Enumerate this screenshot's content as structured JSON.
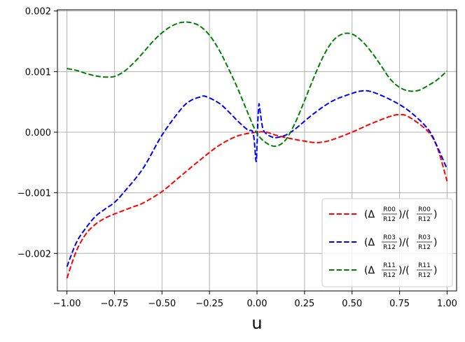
{
  "chart_data": {
    "type": "line",
    "xlabel": "u",
    "ylabel": "",
    "title": "",
    "xlim": [
      -1.05,
      1.05
    ],
    "ylim": [
      -0.00262,
      0.00202
    ],
    "grid": true,
    "legend_position": "lower-right",
    "x_ticks": [
      -1.0,
      -0.75,
      -0.5,
      -0.25,
      0.0,
      0.25,
      0.5,
      0.75,
      1.0
    ],
    "x_tick_labels": [
      "−1.00",
      "−0.75",
      "−0.50",
      "−0.25",
      "0.00",
      "0.25",
      "0.50",
      "0.75",
      "1.00"
    ],
    "y_ticks": [
      -0.002,
      -0.001,
      0.0,
      0.001,
      0.002
    ],
    "y_tick_labels": [
      "−0.002",
      "−0.001",
      "0.000",
      "0.001",
      "0.002"
    ],
    "series": [
      {
        "name": "R00",
        "color": "#ff0000",
        "legend": {
          "pre": "(Δ",
          "num": "R00",
          "den": "R12",
          "mid": ")/(",
          "post": ")"
        },
        "x": [
          -1.0,
          -0.95,
          -0.9,
          -0.85,
          -0.8,
          -0.75,
          -0.7,
          -0.65,
          -0.6,
          -0.5,
          -0.4,
          -0.3,
          -0.2,
          -0.1,
          0.0,
          0.05,
          0.1,
          0.2,
          0.3,
          0.35,
          0.4,
          0.5,
          0.6,
          0.7,
          0.75,
          0.8,
          0.9,
          0.95,
          1.0
        ],
        "y": [
          -0.00241,
          -0.00196,
          -0.00168,
          -0.00152,
          -0.00142,
          -0.00135,
          -0.00129,
          -0.00123,
          -0.00117,
          -0.00098,
          -0.00072,
          -0.00046,
          -0.00022,
          -6e-05,
          0.0,
          0.0,
          -5e-05,
          -0.00012,
          -0.00017,
          -0.00016,
          -0.00012,
          0.0,
          0.00014,
          0.00026,
          0.00029,
          0.00025,
          1e-05,
          -0.00027,
          -0.00081
        ]
      },
      {
        "name": "R03",
        "color": "#0000ff",
        "legend": {
          "pre": "(Δ",
          "num": "R03",
          "den": "R12",
          "mid": ")/(",
          "post": ")"
        },
        "x": [
          -1.0,
          -0.95,
          -0.9,
          -0.85,
          -0.8,
          -0.75,
          -0.7,
          -0.6,
          -0.5,
          -0.4,
          -0.35,
          -0.3,
          -0.27,
          -0.2,
          -0.15,
          -0.1,
          -0.05,
          -0.02,
          -0.005,
          0.0,
          0.005,
          0.01,
          0.015,
          0.03,
          0.05,
          0.08,
          0.1,
          0.15,
          0.2,
          0.3,
          0.4,
          0.5,
          0.55,
          0.6,
          0.7,
          0.8,
          0.9,
          0.95,
          1.0
        ],
        "y": [
          -0.00222,
          -0.00182,
          -0.00158,
          -0.00139,
          -0.00127,
          -0.00116,
          -0.00099,
          -0.0006,
          -5e-05,
          0.00038,
          0.00052,
          0.00058,
          0.00059,
          0.00048,
          0.00034,
          0.00018,
          4e-05,
          -2e-05,
          -0.00048,
          -0.00022,
          0.00021,
          0.00046,
          0.00038,
          7e-05,
          -3e-05,
          -8e-05,
          -9e-05,
          -5e-05,
          5e-05,
          0.00031,
          0.00052,
          0.00064,
          0.00068,
          0.00067,
          0.00054,
          0.00035,
          5e-05,
          -0.00025,
          -0.00061
        ]
      },
      {
        "name": "R11",
        "color": "#008000",
        "legend": {
          "pre": "(Δ",
          "num": "R11",
          "den": "R12",
          "mid": ")/(",
          "post": ")"
        },
        "x": [
          -1.0,
          -0.95,
          -0.9,
          -0.85,
          -0.8,
          -0.75,
          -0.7,
          -0.65,
          -0.6,
          -0.55,
          -0.5,
          -0.45,
          -0.4,
          -0.35,
          -0.3,
          -0.25,
          -0.2,
          -0.15,
          -0.1,
          -0.05,
          0.0,
          0.05,
          0.1,
          0.15,
          0.2,
          0.25,
          0.3,
          0.35,
          0.4,
          0.45,
          0.5,
          0.55,
          0.6,
          0.65,
          0.7,
          0.75,
          0.8,
          0.85,
          0.9,
          0.95,
          1.0
        ],
        "y": [
          0.00105,
          0.00102,
          0.00097,
          0.00093,
          0.00091,
          0.00092,
          0.001,
          0.00114,
          0.00131,
          0.00149,
          0.00164,
          0.00175,
          0.00181,
          0.00181,
          0.00175,
          0.0016,
          0.00136,
          0.00105,
          0.00071,
          0.00033,
          -2e-05,
          -0.00018,
          -0.00023,
          -0.00013,
          0.00015,
          0.00052,
          0.00091,
          0.00126,
          0.00151,
          0.00162,
          0.00162,
          0.00151,
          0.00133,
          0.00111,
          0.00088,
          0.00074,
          0.00068,
          0.00069,
          0.00077,
          0.00087,
          0.00101
        ]
      }
    ]
  }
}
